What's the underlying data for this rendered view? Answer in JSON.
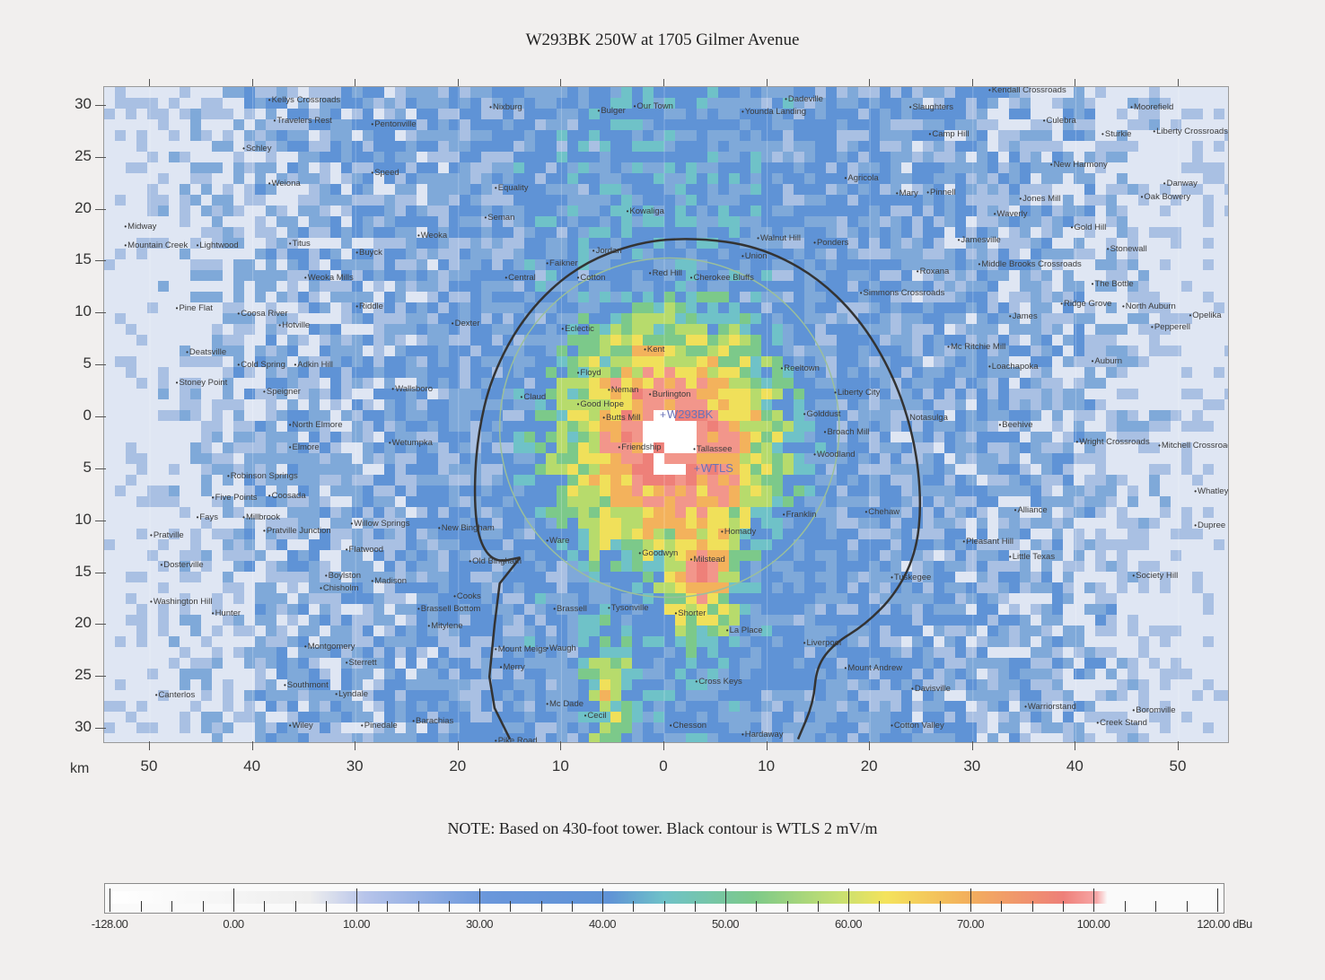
{
  "title": "W293BK 250W  at 1705 Gilmer Avenue",
  "note": "NOTE: Based on 430-foot tower. Black contour is WTLS 2 mV/m",
  "axis_unit": "km",
  "y_ticks": [
    "30",
    "25",
    "20",
    "15",
    "10",
    "5",
    "0",
    "5",
    "10",
    "15",
    "20",
    "25",
    "30"
  ],
  "x_ticks": [
    "50",
    "40",
    "30",
    "20",
    "10",
    "0",
    "10",
    "20",
    "30",
    "40",
    "50"
  ],
  "stations": [
    {
      "name": "W293BK",
      "x_km": 0.0,
      "y_km": 0.2
    },
    {
      "name": "WTLS",
      "x_km": 3.3,
      "y_km": -5.0
    }
  ],
  "places": [
    {
      "name": "Kellys Crossroads",
      "x": -38.5,
      "y": 30.5
    },
    {
      "name": "Travelers Rest",
      "x": -38,
      "y": 28.5
    },
    {
      "name": "Pentonville",
      "x": -28.5,
      "y": 28.2
    },
    {
      "name": "Nixburg",
      "x": -17,
      "y": 29.8
    },
    {
      "name": "Bulger",
      "x": -6.5,
      "y": 29.5
    },
    {
      "name": "Our Town",
      "x": -3.0,
      "y": 29.9
    },
    {
      "name": "Dadeville",
      "x": 11.7,
      "y": 30.6
    },
    {
      "name": "Younda Landing",
      "x": 7.5,
      "y": 29.4
    },
    {
      "name": "Kendall Crossroads",
      "x": 31.5,
      "y": 31.5
    },
    {
      "name": "Slaughters",
      "x": 23.8,
      "y": 29.8
    },
    {
      "name": "Moorefield",
      "x": 45.3,
      "y": 29.8
    },
    {
      "name": "Culebra",
      "x": 36.8,
      "y": 28.5
    },
    {
      "name": "Camp Hill",
      "x": 25.7,
      "y": 27.2
    },
    {
      "name": "Sturkie",
      "x": 42.5,
      "y": 27.2
    },
    {
      "name": "Liberty Crossroads",
      "x": 47.5,
      "y": 27.5
    },
    {
      "name": "Schley",
      "x": -41,
      "y": 25.8
    },
    {
      "name": "Speed",
      "x": -28.5,
      "y": 23.5
    },
    {
      "name": "Weiona",
      "x": -38.5,
      "y": 22.5
    },
    {
      "name": "Equality",
      "x": -16.5,
      "y": 22
    },
    {
      "name": "New Harmony",
      "x": 37.5,
      "y": 24.3
    },
    {
      "name": "Agricola",
      "x": 17.5,
      "y": 23
    },
    {
      "name": "Mary",
      "x": 22.5,
      "y": 21.5
    },
    {
      "name": "Pinnell",
      "x": 25.5,
      "y": 21.6
    },
    {
      "name": "Jones Mill",
      "x": 34.5,
      "y": 21
    },
    {
      "name": "Danway",
      "x": 48.5,
      "y": 22.5
    },
    {
      "name": "Oak Bowery",
      "x": 46.3,
      "y": 21.2
    },
    {
      "name": "Kowaliga",
      "x": -3.7,
      "y": 19.8
    },
    {
      "name": "Seman",
      "x": -17.5,
      "y": 19.2
    },
    {
      "name": "Waverly",
      "x": 32,
      "y": 19.5
    },
    {
      "name": "Midway",
      "x": -52.5,
      "y": 18.3
    },
    {
      "name": "Gold Hill",
      "x": 39.5,
      "y": 18.2
    },
    {
      "name": "Weoka",
      "x": -24,
      "y": 17.5
    },
    {
      "name": "Walnut Hill",
      "x": 9,
      "y": 17.2
    },
    {
      "name": "Ponders",
      "x": 14.5,
      "y": 16.8
    },
    {
      "name": "Jamesville",
      "x": 28.5,
      "y": 17
    },
    {
      "name": "Mountain Creek",
      "x": -52.5,
      "y": 16.5
    },
    {
      "name": "Lightwood",
      "x": -45.5,
      "y": 16.5
    },
    {
      "name": "Titus",
      "x": -36.5,
      "y": 16.7
    },
    {
      "name": "Stonewall",
      "x": 43,
      "y": 16.2
    },
    {
      "name": "Jordan",
      "x": -7,
      "y": 16
    },
    {
      "name": "Buyck",
      "x": -30,
      "y": 15.8
    },
    {
      "name": "Union",
      "x": 7.5,
      "y": 15.5
    },
    {
      "name": "Faikner",
      "x": -11.5,
      "y": 14.8
    },
    {
      "name": "Middle Brooks Crossroads",
      "x": 30.5,
      "y": 14.7
    },
    {
      "name": "Roxana",
      "x": 24.5,
      "y": 14
    },
    {
      "name": "Red Hill",
      "x": -1.5,
      "y": 13.8
    },
    {
      "name": "Cherokee Bluffs",
      "x": 2.5,
      "y": 13.4
    },
    {
      "name": "Central",
      "x": -15.5,
      "y": 13.4
    },
    {
      "name": "Cotton",
      "x": -8.5,
      "y": 13.4
    },
    {
      "name": "Weoka Mills",
      "x": -35,
      "y": 13.4
    },
    {
      "name": "The Bottle",
      "x": 41.5,
      "y": 12.8
    },
    {
      "name": "Simmons Crossroads",
      "x": 19,
      "y": 11.9
    },
    {
      "name": "Pine Flat",
      "x": -47.5,
      "y": 10.5
    },
    {
      "name": "Riddle",
      "x": -30,
      "y": 10.6
    },
    {
      "name": "Ridge Grove",
      "x": 38.5,
      "y": 10.9
    },
    {
      "name": "North Auburn",
      "x": 44.5,
      "y": 10.6
    },
    {
      "name": "Coosa River",
      "x": -41.5,
      "y": 9.9
    },
    {
      "name": "James",
      "x": 33.5,
      "y": 9.7
    },
    {
      "name": "Opelika",
      "x": 51,
      "y": 9.8
    },
    {
      "name": "Hotville",
      "x": -37.5,
      "y": 8.8
    },
    {
      "name": "Dexter",
      "x": -20.7,
      "y": 9.0
    },
    {
      "name": "Eclectic",
      "x": -10,
      "y": 8.5
    },
    {
      "name": "Pepperell",
      "x": 47.3,
      "y": 8.6
    },
    {
      "name": "Deatsville",
      "x": -46.5,
      "y": 6.2
    },
    {
      "name": "Kent",
      "x": -2,
      "y": 6.5
    },
    {
      "name": "Mc Ritchie Mill",
      "x": 27.5,
      "y": 6.7
    },
    {
      "name": "Auburn",
      "x": 41.5,
      "y": 5.4
    },
    {
      "name": "Cold Spring",
      "x": -41.5,
      "y": 5.0
    },
    {
      "name": "Adkin Hill",
      "x": -36,
      "y": 5.0
    },
    {
      "name": "Loachapoka",
      "x": 31.5,
      "y": 4.8
    },
    {
      "name": "Reeltown",
      "x": 11.3,
      "y": 4.7
    },
    {
      "name": "Floyd",
      "x": -8.5,
      "y": 4.2
    },
    {
      "name": "Stoney Point",
      "x": -47.5,
      "y": 3.3
    },
    {
      "name": "Wallsboro",
      "x": -26.5,
      "y": 2.7
    },
    {
      "name": "Speigner",
      "x": -39,
      "y": 2.4
    },
    {
      "name": "Neman",
      "x": -5.5,
      "y": 2.6
    },
    {
      "name": "Burlington",
      "x": -1.5,
      "y": 2.2
    },
    {
      "name": "Liberty City",
      "x": 16.5,
      "y": 2.3
    },
    {
      "name": "Claud",
      "x": -14,
      "y": 1.9
    },
    {
      "name": "Good Hope",
      "x": -8.5,
      "y": 1.2
    },
    {
      "name": "Butts Mill",
      "x": -6,
      "y": -0.1
    },
    {
      "name": "Golddust",
      "x": 13.5,
      "y": 0.3
    },
    {
      "name": "Notasulga",
      "x": 23.5,
      "y": -0.1
    },
    {
      "name": "North Elmore",
      "x": -36.5,
      "y": -0.8
    },
    {
      "name": "Beehive",
      "x": 32.5,
      "y": -0.8
    },
    {
      "name": "Broach Mill",
      "x": 15.5,
      "y": -1.5
    },
    {
      "name": "Wetumpka",
      "x": -26.8,
      "y": -2.5
    },
    {
      "name": "Wright Crossroads",
      "x": 40,
      "y": -2.4
    },
    {
      "name": "Mitchell Crossroads",
      "x": 48,
      "y": -2.8
    },
    {
      "name": "Elmore",
      "x": -36.5,
      "y": -2.9
    },
    {
      "name": "Friendship",
      "x": -4.5,
      "y": -2.9
    },
    {
      "name": "Tallassee",
      "x": 2.8,
      "y": -3.1
    },
    {
      "name": "Woodland",
      "x": 14.5,
      "y": -3.6
    },
    {
      "name": "Robinson Springs",
      "x": -42.5,
      "y": -5.7
    },
    {
      "name": "Five Points",
      "x": -44,
      "y": -7.8
    },
    {
      "name": "Coosada",
      "x": -38.5,
      "y": -7.6
    },
    {
      "name": "Whatley",
      "x": 51.5,
      "y": -7.2
    },
    {
      "name": "Chehaw",
      "x": 19.5,
      "y": -9.2
    },
    {
      "name": "Alliance",
      "x": 34,
      "y": -9.0
    },
    {
      "name": "Fays",
      "x": -45.5,
      "y": -9.7
    },
    {
      "name": "Millbrook",
      "x": -41,
      "y": -9.7
    },
    {
      "name": "Franklin",
      "x": 11.5,
      "y": -9.4
    },
    {
      "name": "Willow Springs",
      "x": -30.5,
      "y": -10.3
    },
    {
      "name": "New Bingham",
      "x": -22,
      "y": -10.7
    },
    {
      "name": "Pratville Junction",
      "x": -39,
      "y": -11.0
    },
    {
      "name": "Homady",
      "x": 5.5,
      "y": -11.1
    },
    {
      "name": "Pratville",
      "x": -50,
      "y": -11.4
    },
    {
      "name": "Dupree",
      "x": 51.5,
      "y": -10.5
    },
    {
      "name": "Pleasant Hill",
      "x": 29,
      "y": -12
    },
    {
      "name": "Ware",
      "x": -11.5,
      "y": -11.9
    },
    {
      "name": "Flatwood",
      "x": -31,
      "y": -12.8
    },
    {
      "name": "Goodwyn",
      "x": -2.5,
      "y": -13.1
    },
    {
      "name": "Little Texas",
      "x": 33.5,
      "y": -13.5
    },
    {
      "name": "Milstead",
      "x": 2.5,
      "y": -13.7
    },
    {
      "name": "Old Bingham",
      "x": -19,
      "y": -13.9
    },
    {
      "name": "Dosterville",
      "x": -49,
      "y": -14.3
    },
    {
      "name": "Boylston",
      "x": -33,
      "y": -15.3
    },
    {
      "name": "Madison",
      "x": -28.5,
      "y": -15.8
    },
    {
      "name": "Society Hill",
      "x": 45.5,
      "y": -15.3
    },
    {
      "name": "Tuskegee",
      "x": 22,
      "y": -15.5
    },
    {
      "name": "Chisholm",
      "x": -33.5,
      "y": -16.5
    },
    {
      "name": "Cooks",
      "x": -20.5,
      "y": -17.3
    },
    {
      "name": "Washington Hill",
      "x": -50,
      "y": -17.8
    },
    {
      "name": "Brassell",
      "x": -10.8,
      "y": -18.5
    },
    {
      "name": "Tysonville",
      "x": -5.5,
      "y": -18.4
    },
    {
      "name": "Brassell Bottom",
      "x": -24,
      "y": -18.5
    },
    {
      "name": "Shorter",
      "x": 1.0,
      "y": -18.9
    },
    {
      "name": "Hunter",
      "x": -44,
      "y": -18.9
    },
    {
      "name": "Mitylene",
      "x": -23,
      "y": -20.1
    },
    {
      "name": "La Place",
      "x": 6,
      "y": -20.6
    },
    {
      "name": "Montgomery",
      "x": -35,
      "y": -22.1
    },
    {
      "name": "Liverpool",
      "x": 13.5,
      "y": -21.8
    },
    {
      "name": "Mount Meigs",
      "x": -16.5,
      "y": -22.4
    },
    {
      "name": "Waugh",
      "x": -11.5,
      "y": -22.3
    },
    {
      "name": "Mount Andrew",
      "x": 17.5,
      "y": -24.2
    },
    {
      "name": "Sterrett",
      "x": -31,
      "y": -23.7
    },
    {
      "name": "Merry",
      "x": -16,
      "y": -24.1
    },
    {
      "name": "Southmont",
      "x": -37,
      "y": -25.8
    },
    {
      "name": "Cross Keys",
      "x": 3,
      "y": -25.5
    },
    {
      "name": "Davisville",
      "x": 24,
      "y": -26.2
    },
    {
      "name": "Canterlos",
      "x": -49.5,
      "y": -26.8
    },
    {
      "name": "Lyndale",
      "x": -32,
      "y": -26.7
    },
    {
      "name": "Mc Dade",
      "x": -11.5,
      "y": -27.7
    },
    {
      "name": "Warriorstand",
      "x": 35,
      "y": -27.9
    },
    {
      "name": "Boromville",
      "x": 45.5,
      "y": -28.3
    },
    {
      "name": "Cecil",
      "x": -7.8,
      "y": -28.8
    },
    {
      "name": "Barachias",
      "x": -24.5,
      "y": -29.3
    },
    {
      "name": "Wiley",
      "x": -36.5,
      "y": -29.7
    },
    {
      "name": "Pinedale",
      "x": -29.5,
      "y": -29.7
    },
    {
      "name": "Chesson",
      "x": 0.5,
      "y": -29.7
    },
    {
      "name": "Cotton Valley",
      "x": 22,
      "y": -29.7
    },
    {
      "name": "Creek Stand",
      "x": 42,
      "y": -29.5
    },
    {
      "name": "Hardaway",
      "x": 7.5,
      "y": -30.6
    },
    {
      "name": "Pike Road",
      "x": -16.5,
      "y": -31.2
    }
  ],
  "legend": {
    "unit": "dBu",
    "labels": [
      "-128.00",
      "0.00",
      "10.00",
      "30.00",
      "40.00",
      "50.00",
      "60.00",
      "70.00",
      "100.00",
      "120.00 dBu"
    ]
  },
  "colors": {
    "blue_low": "#7fa9d9",
    "blue": "#5f93d6",
    "teal": "#6fc2c8",
    "green": "#7cc98a",
    "yellow": "#f0e05a",
    "orange": "#f3b25c",
    "red": "#ee8079",
    "contour": "#333333"
  }
}
